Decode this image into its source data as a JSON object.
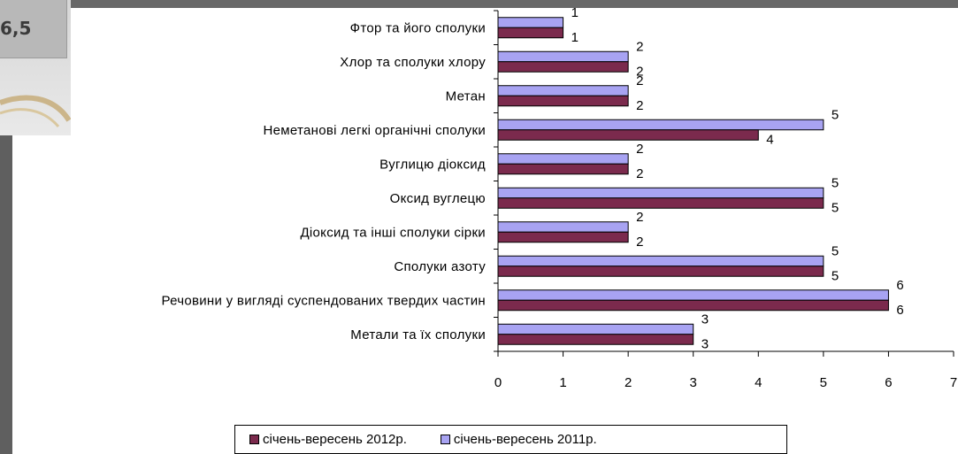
{
  "background_fragment": {
    "value_text": "6,5"
  },
  "colors": {
    "series_2012": "#7b2a4d",
    "series_2011": "#a8a3f2",
    "axis": "#000000"
  },
  "chart_data": {
    "type": "bar",
    "orientation": "horizontal",
    "categories": [
      "Фтор та його сполуки",
      "Хлор та сполуки хлору",
      "Метан",
      "Неметанові легкі органічні сполуки",
      "Вуглицю діоксид",
      "Оксид вуглецю",
      "Діоксид та інші сполуки сірки",
      "Сполуки азоту",
      "Речовини у вигляді суспендованих твердих частин",
      "Метали та їх сполуки"
    ],
    "series": [
      {
        "name": "січень-вересень 2011р.",
        "color": "#a8a3f2",
        "values": [
          1,
          2,
          2,
          5,
          2,
          5,
          2,
          5,
          6,
          3
        ]
      },
      {
        "name": "січень-вересень 2012р.",
        "color": "#7b2a4d",
        "values": [
          1,
          2,
          2,
          4,
          2,
          5,
          2,
          5,
          6,
          3
        ]
      }
    ],
    "xlim": [
      0,
      7
    ],
    "xticks": [
      "0",
      "1",
      "2",
      "3",
      "4",
      "5",
      "6",
      "7"
    ],
    "grid": false,
    "legend_position": "bottom"
  }
}
